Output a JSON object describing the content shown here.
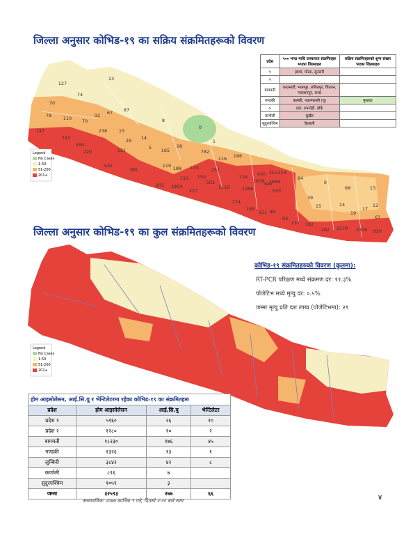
{
  "titles": {
    "active": "जिल्ला अनुसार कोभिड-१९ का सक्रिय संक्रमितहरूको विवरण",
    "total": "जिल्ला अनुसार कोभिड-१९ का कुल संक्रमितहरूको विवरण"
  },
  "legend": {
    "title": "Legend",
    "items": [
      "No Cases",
      "1-50",
      "51-200",
      "201+"
    ]
  },
  "active_map_labels": [
    "127",
    "74",
    "13",
    "70",
    "78",
    "110",
    "87",
    "67",
    "8",
    "0",
    "147",
    "70",
    "92",
    "743",
    "238",
    "15",
    "29",
    "14",
    "5",
    "28",
    "1",
    "559",
    "121",
    "165",
    "119",
    "186",
    "782",
    "229",
    "540",
    "765",
    "188",
    "116",
    "133",
    "251",
    "116",
    "430",
    "251",
    "340",
    "224",
    "84",
    "9",
    "68",
    "13",
    "110",
    "1904",
    "150",
    "502",
    "1118",
    "1088",
    "1636",
    "1656",
    "533",
    "205",
    "227",
    "174",
    "195",
    "151",
    "89",
    "93",
    "237",
    "182",
    "262",
    "2579",
    "3319",
    "826",
    "63",
    "39",
    "15",
    "19",
    "17",
    "12",
    "24"
  ],
  "district_table": {
    "headers": [
      "प्रदेश",
      "५०० भन्दा माथि उपचाररत संक्रमितहरु भएका जिल्लाहरु",
      "सक्रिय संक्रमितहरुको शुन्य संख्या भएका जिल्लाहरु"
    ],
    "rows": [
      {
        "province": "१",
        "high": "झापा, मोरङ, सुनसरी"
      },
      {
        "province": "२"
      },
      {
        "province": "बागमती",
        "high": "काठमाडौं, भक्तपुर, ललितपुर, चितवन, मकवानपुर, काभ्रे"
      },
      {
        "province": "गण्डकी",
        "high": "कास्की, नवलपरासी (पू)",
        "zero": "मुस्ताङ"
      },
      {
        "province": "५",
        "high": "दाङ, रुपन्देही, बाँके"
      },
      {
        "province": "कर्णाली",
        "high": "सुर्खेत"
      },
      {
        "province": "सुदुरपश्चिम",
        "high": "कैलाली"
      }
    ]
  },
  "summary": {
    "heading": "कोभिड-१९ संक्रमितहरुको विवरण (कुलमा):",
    "lines": [
      "RT-PCR परिक्षण मध्ये संक्रमण दर: ११.३%",
      "पोजेटिभ मध्ये मृत्यु दर: ०.५%",
      "जम्मा मृत्यु प्रति दश लाख (पोजेटिभमा): २९"
    ]
  },
  "isolation_table": {
    "title": "होम आइसोलेसन, आई.सि.यु र भेन्टिलेटरमा रहेका कोभिड-१९ का संक्रमितहरू",
    "headers": [
      "प्रदेश",
      "होम आइसोलेसन",
      "आई.सि.यु",
      "भेन्टिलेटर"
    ],
    "rows": [
      [
        "प्रदेश १",
        "५९६०",
        "२६",
        "१०"
      ],
      [
        "प्रदेश २",
        "१२८०",
        "१०",
        "२"
      ],
      [
        "बागमती",
        "१८२३०",
        "१७६",
        "४५"
      ],
      [
        "गण्डकी",
        "१३२६",
        "१३",
        "१"
      ],
      [
        "लुम्बिनी",
        "३८४२",
        "४२",
        "८"
      ],
      [
        "कर्णाली",
        "८९६",
        "७"
      ],
      [
        "सुदुरपश्चिम",
        "१०५९",
        "३"
      ]
    ],
    "total": [
      "जम्मा",
      "३२५९३",
      "२७७",
      "६६"
    ]
  },
  "footer": "अध्यावधिक: २०७७ कार्तिक ९ गते, दिउसो २:०० बजे सम्म",
  "page_number": "४"
}
